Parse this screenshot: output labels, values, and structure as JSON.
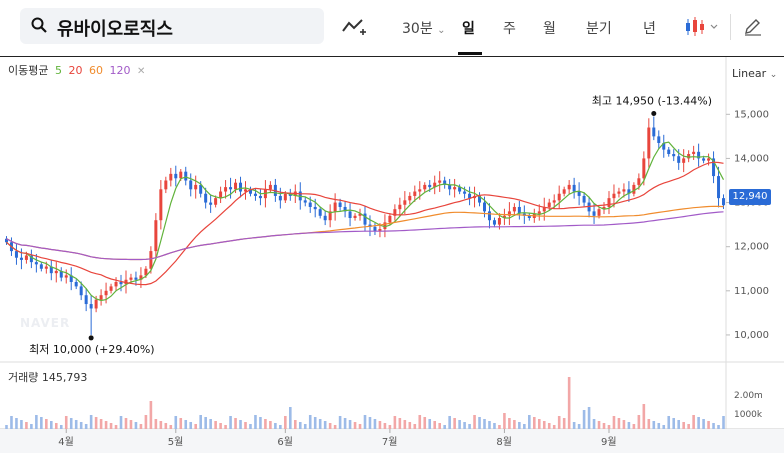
{
  "search": {
    "stock_name": "유바이오로직스",
    "icon": "search-icon"
  },
  "toolbar": {
    "draw_icon": "trend-draw-icon",
    "minute_label": "30분",
    "tabs": [
      "일",
      "주",
      "월",
      "분기",
      "년"
    ],
    "active_tab": "일",
    "candle_icon": "candlestick-icon",
    "edit_icon": "pencil-icon"
  },
  "legend": {
    "title": "이동평균",
    "ma": [
      {
        "label": "5",
        "color": "#61b33b"
      },
      {
        "label": "20",
        "color": "#e8453c"
      },
      {
        "label": "60",
        "color": "#f08c2d"
      },
      {
        "label": "120",
        "color": "#a25bc8"
      }
    ],
    "close_icon": "close-icon"
  },
  "scale_label": "Linear",
  "current_price": "12,940",
  "annotations": {
    "high": {
      "label": "최고",
      "value": "14,950",
      "pct": "(-13.44%)"
    },
    "low": {
      "label": "최저",
      "value": "10,000",
      "pct": "(+29.40%)"
    }
  },
  "volume": {
    "title": "거래량",
    "value": "145,793",
    "ticks": [
      "2.00m",
      "1000k"
    ]
  },
  "watermark": "NAVER",
  "colors": {
    "up": "#e8453c",
    "down": "#2a6bd6"
  },
  "chart_data": {
    "type": "candlestick",
    "y_ticks": [
      10000,
      11000,
      12000,
      13000,
      14000,
      15000
    ],
    "y_tick_labels": [
      "10,000",
      "11,000",
      "12,000",
      "13,000",
      "14,000",
      "15,000"
    ],
    "ylim": [
      9500,
      15800
    ],
    "x_ticks": [
      "4월",
      "5월",
      "6월",
      "7월",
      "8월",
      "9월"
    ],
    "x_tick_index": [
      12,
      34,
      56,
      77,
      100,
      121
    ],
    "close": [
      12100,
      11900,
      11750,
      11700,
      11800,
      11650,
      11600,
      11500,
      11550,
      11400,
      11450,
      11300,
      11350,
      11200,
      11100,
      10900,
      10700,
      10600,
      10800,
      10900,
      11000,
      11100,
      11200,
      11150,
      11250,
      11300,
      11250,
      11350,
      11500,
      11900,
      12600,
      13300,
      13500,
      13650,
      13550,
      13700,
      13500,
      13300,
      13400,
      13200,
      13000,
      12950,
      13100,
      13250,
      13350,
      13300,
      13450,
      13250,
      13300,
      13200,
      13150,
      13100,
      13300,
      13400,
      13150,
      13050,
      13200,
      13150,
      13250,
      13050,
      13000,
      12900,
      12850,
      12700,
      12600,
      12800,
      13000,
      12900,
      12800,
      12650,
      12700,
      12750,
      12500,
      12450,
      12350,
      12400,
      12550,
      12700,
      12850,
      12950,
      13050,
      13150,
      13250,
      13300,
      13400,
      13350,
      13450,
      13500,
      13400,
      13300,
      13350,
      13250,
      13200,
      13100,
      13150,
      13000,
      12800,
      12600,
      12500,
      12650,
      12700,
      12800,
      12900,
      12750,
      12700,
      12650,
      12750,
      12800,
      12900,
      13000,
      13050,
      13200,
      13300,
      13400,
      13250,
      13150,
      13000,
      12800,
      12700,
      12850,
      12900,
      13100,
      13200,
      13250,
      13300,
      13200,
      13400,
      13550,
      14000,
      14700,
      14500,
      14350,
      14200,
      14100,
      14050,
      13900,
      14000,
      14100,
      14150,
      14000,
      13950,
      14000,
      13600,
      13100,
      12940
    ],
    "ma": {
      "5": "line",
      "20": "line",
      "60": "line",
      "120": "line"
    }
  }
}
